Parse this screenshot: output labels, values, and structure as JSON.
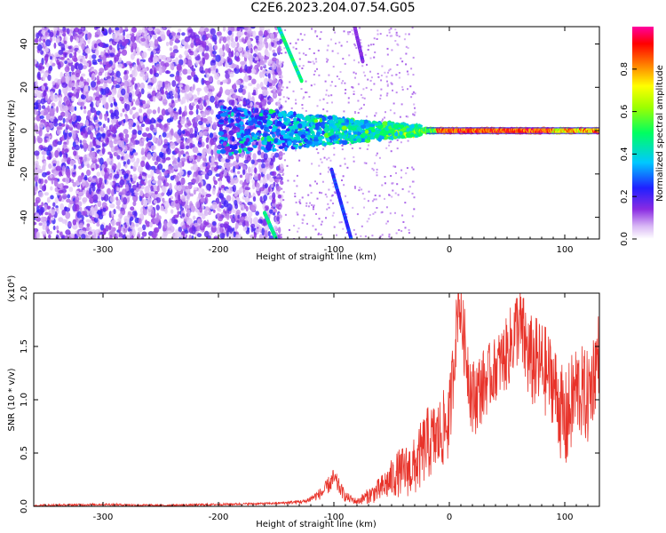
{
  "title": "C2E6.2023.204.07.54.G05",
  "chart_data": [
    {
      "type": "heatmap",
      "xlabel": "Height of straight line (km)",
      "ylabel": "Frequency (Hz)",
      "xlim": [
        -360,
        130
      ],
      "ylim": [
        -50,
        48
      ],
      "xticks": [
        -300,
        -200,
        -100,
        0,
        100
      ],
      "yticks": [
        -40,
        -20,
        0,
        20,
        40
      ],
      "colorbar": {
        "label": "Normalized spectral amplitude",
        "range": [
          0,
          1
        ],
        "ticks": [
          "0.0",
          "0.2",
          "0.4",
          "0.6",
          "0.8"
        ],
        "colormap": "white-violet-blue-cyan-green-yellow-red-magenta"
      },
      "features": [
        {
          "name": "noise",
          "x": [
            -360,
            -150
          ],
          "y": [
            -50,
            48
          ],
          "amplitude": 0.2
        },
        {
          "name": "carrier",
          "x": [
            -200,
            130
          ],
          "y": [
            0,
            0
          ],
          "amplitude_rising_to": 0.95
        },
        {
          "name": "streak",
          "points": [
            [
              -148,
              48
            ],
            [
              -128,
              23
            ]
          ],
          "amplitude": 0.45
        },
        {
          "name": "streak",
          "points": [
            [
              -160,
              -38
            ],
            [
              -150,
              -50
            ]
          ],
          "amplitude": 0.45
        },
        {
          "name": "streak",
          "points": [
            [
              -102,
              -18
            ],
            [
              -85,
              -50
            ]
          ],
          "amplitude": 0.25
        },
        {
          "name": "streak",
          "points": [
            [
              -82,
              48
            ],
            [
              -75,
              32
            ]
          ],
          "amplitude": 0.15
        }
      ]
    },
    {
      "type": "line",
      "xlabel": "Height of straight line (km)",
      "ylabel": "SNR (10 * v/v)",
      "multiplier": "(x10⁴)",
      "xlim": [
        -360,
        130
      ],
      "ylim": [
        0,
        2.0
      ],
      "xticks": [
        -300,
        -200,
        -100,
        0,
        100
      ],
      "yticks": [
        "0.0",
        "0.5",
        "1.0",
        "1.5",
        "2.0"
      ],
      "color": "#e8332a",
      "series": [
        {
          "x": [
            -360,
            -300,
            -250,
            -200,
            -150,
            -125,
            -110,
            -100,
            -90,
            -80,
            -60,
            -45,
            -30,
            -20,
            -10,
            0,
            8,
            20,
            40,
            50,
            60,
            70,
            80,
            90,
            100,
            110,
            120,
            130
          ],
          "y": [
            0.01,
            0.02,
            0.01,
            0.02,
            0.03,
            0.05,
            0.14,
            0.28,
            0.1,
            0.05,
            0.18,
            0.35,
            0.42,
            0.65,
            0.72,
            0.88,
            2.0,
            1.08,
            1.35,
            1.5,
            1.8,
            1.45,
            1.4,
            1.25,
            0.85,
            1.2,
            1.1,
            1.55
          ],
          "band": [
            0.01,
            0.01,
            0.01,
            0.01,
            0.01,
            0.02,
            0.06,
            0.1,
            0.05,
            0.03,
            0.12,
            0.22,
            0.28,
            0.35,
            0.35,
            0.38,
            0.3,
            0.38,
            0.3,
            0.35,
            0.4,
            0.45,
            0.45,
            0.4,
            0.5,
            0.45,
            0.45,
            0.4
          ]
        }
      ]
    }
  ]
}
